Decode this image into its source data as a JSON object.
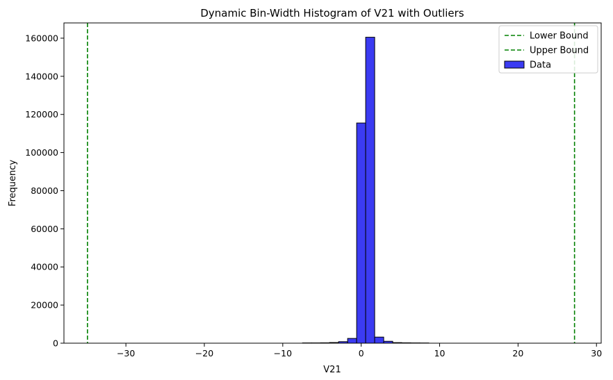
{
  "chart_data": {
    "type": "bar",
    "title": "Dynamic Bin-Width Histogram of V21 with Outliers",
    "xlabel": "V21",
    "ylabel": "Frequency",
    "xlim": [
      -37.9,
      30.6
    ],
    "ylim": [
      0,
      168000
    ],
    "xticks": [
      -30,
      -20,
      -10,
      0,
      10,
      20,
      30
    ],
    "xtick_labels": [
      "−30",
      "−20",
      "−10",
      "0",
      "10",
      "20",
      "30"
    ],
    "yticks": [
      0,
      20000,
      40000,
      60000,
      80000,
      100000,
      120000,
      140000,
      160000
    ],
    "ytick_labels": [
      "0",
      "20000",
      "40000",
      "60000",
      "80000",
      "100000",
      "120000",
      "140000",
      "160000"
    ],
    "bin_width": 1.15,
    "bins": [
      {
        "x0": -7.48,
        "x1": -6.33,
        "value": 150
      },
      {
        "x0": -6.33,
        "x1": -5.18,
        "value": 150
      },
      {
        "x0": -5.18,
        "x1": -4.03,
        "value": 200
      },
      {
        "x0": -4.03,
        "x1": -2.88,
        "value": 350
      },
      {
        "x0": -2.88,
        "x1": -1.73,
        "value": 800
      },
      {
        "x0": -1.73,
        "x1": -0.58,
        "value": 2500
      },
      {
        "x0": -0.58,
        "x1": 0.57,
        "value": 115500
      },
      {
        "x0": 0.57,
        "x1": 1.72,
        "value": 160500
      },
      {
        "x0": 1.72,
        "x1": 2.87,
        "value": 3200
      },
      {
        "x0": 2.87,
        "x1": 4.02,
        "value": 1000
      },
      {
        "x0": 4.02,
        "x1": 5.17,
        "value": 300
      },
      {
        "x0": 5.17,
        "x1": 6.32,
        "value": 200
      },
      {
        "x0": 6.32,
        "x1": 7.47,
        "value": 150
      },
      {
        "x0": 7.47,
        "x1": 8.62,
        "value": 120
      }
    ],
    "bounds": [
      {
        "name": "Lower Bound",
        "value": -34.9
      },
      {
        "name": "Upper Bound",
        "value": 27.2
      }
    ],
    "legend": {
      "placement": "top-right",
      "entries": [
        {
          "label": "Lower Bound",
          "kind": "dashed-line"
        },
        {
          "label": "Upper Bound",
          "kind": "dashed-line"
        },
        {
          "label": "Data",
          "kind": "patch"
        }
      ]
    },
    "colors": {
      "bar_fill": "#3b3bf2",
      "bar_edge": "#000000",
      "bound_line": "#008000",
      "axes": "#000000",
      "background": "#ffffff"
    },
    "grid": false
  }
}
